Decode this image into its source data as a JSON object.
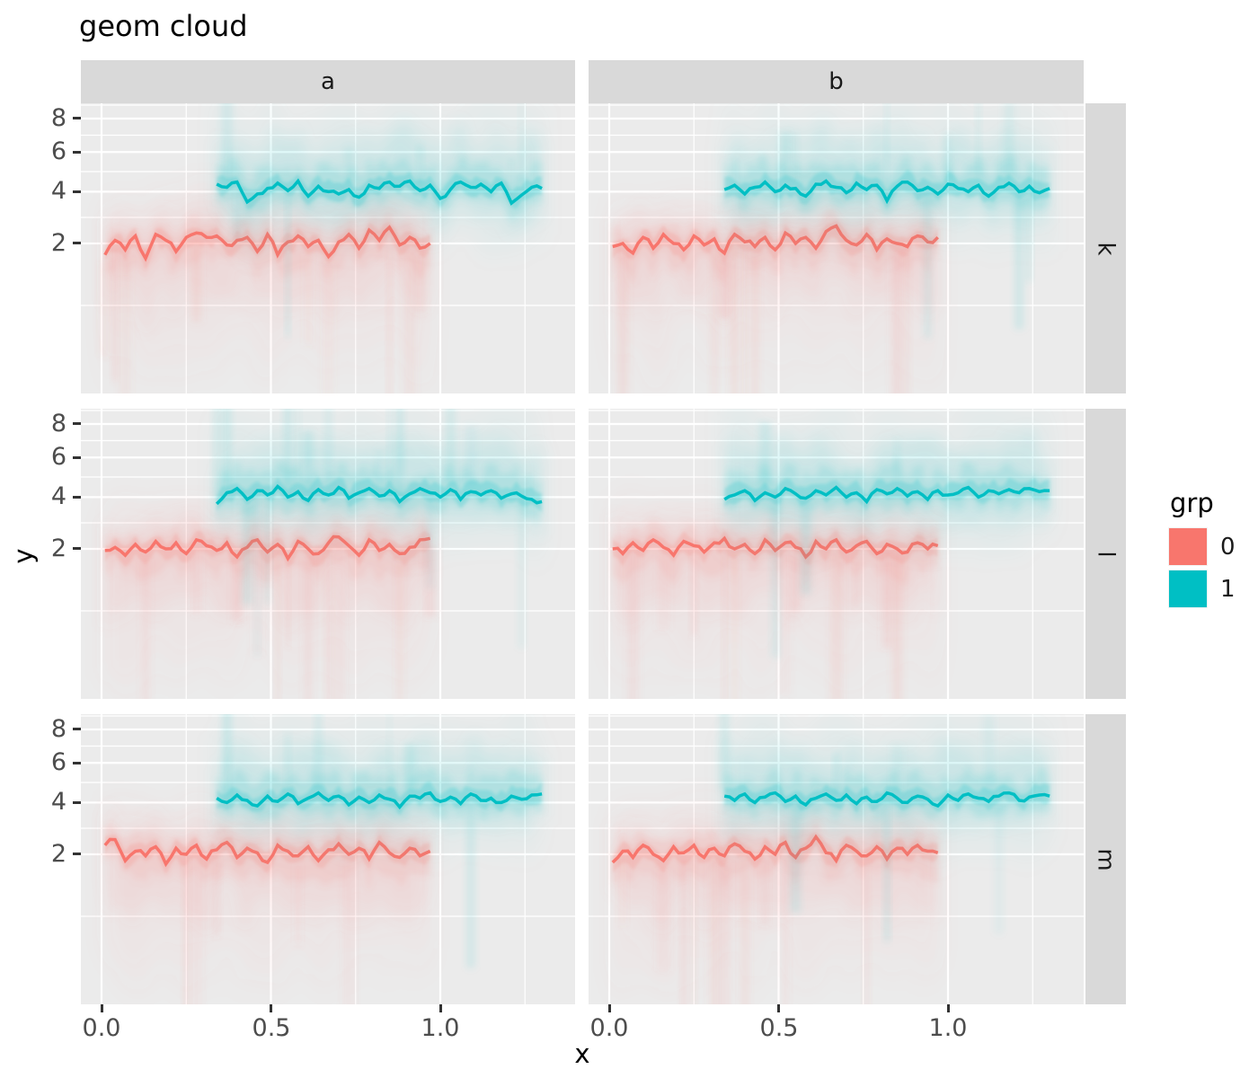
{
  "title": "geom cloud",
  "facets": {
    "cols": [
      "a",
      "b"
    ],
    "rows": [
      "k",
      "l",
      "m"
    ]
  },
  "axes": {
    "x_title": "x",
    "y_title": "y",
    "x_tick_labels": [
      "0.0",
      "0.5",
      "1.0"
    ],
    "x_tick_values": [
      0.0,
      0.5,
      1.0
    ],
    "y_tick_labels": [
      "8",
      "6",
      "4",
      "2"
    ],
    "y_tick_values": [
      8,
      6,
      4,
      2
    ],
    "y_scale": "sqrt",
    "x_range": [
      -0.06,
      1.4
    ],
    "y_range": [
      0,
      9
    ]
  },
  "legend": {
    "title": "grp",
    "items": [
      {
        "label": "0",
        "color": "#F8766D"
      },
      {
        "label": "1",
        "color": "#00BFC4"
      }
    ]
  },
  "colors": {
    "panel_bg": "#EBEBEB",
    "strip_bg": "#D9D9D9",
    "grid": "#FFFFFF",
    "axis_text": "#4D4D4D",
    "tick_mark": "#333333",
    "grp0": "#F8766D",
    "grp1": "#00BFC4"
  },
  "chart_data": {
    "type": "line",
    "description": "faceted jagged lines with fuzzy uncertainty clouds; grp 0 around y=2, grp 1 around y=4",
    "panels": [
      {
        "facet_col": "a",
        "facet_row": "k",
        "series": [
          {
            "grp": "0",
            "x0": 0.01,
            "dx": 0.03,
            "y": [
              1.65,
              2.1,
              1.8,
              2.25,
              1.55,
              2.3,
              2.1,
              1.75,
              2.2,
              2.35,
              2.2,
              2.25,
              1.95,
              2.1,
              2.2,
              1.75,
              2.3,
              1.65,
              2.05,
              2.25,
              1.9,
              2.1,
              1.6,
              2.05,
              2.3,
              1.85,
              2.45,
              2.1,
              2.55,
              1.95,
              2.2,
              1.85,
              2.0
            ]
          },
          {
            "grp": "1",
            "x0": 0.34,
            "dx": 0.03,
            "y": [
              4.35,
              4.2,
              4.45,
              3.55,
              3.9,
              4.15,
              4.4,
              4.05,
              4.5,
              3.8,
              4.25,
              4.0,
              3.9,
              4.1,
              3.75,
              4.3,
              4.15,
              4.45,
              4.25,
              4.5,
              4.05,
              4.3,
              3.7,
              4.1,
              4.45,
              4.2,
              4.35,
              4.0,
              4.4,
              3.5,
              3.85,
              4.2,
              4.15
            ]
          }
        ]
      },
      {
        "facet_col": "b",
        "facet_row": "k",
        "series": [
          {
            "grp": "0",
            "x0": 0.01,
            "dx": 0.03,
            "y": [
              1.9,
              2.0,
              1.7,
              2.2,
              1.85,
              2.3,
              2.0,
              1.8,
              2.25,
              1.95,
              2.15,
              1.7,
              2.3,
              2.05,
              1.9,
              2.2,
              1.8,
              2.35,
              2.0,
              2.2,
              1.85,
              2.4,
              2.6,
              2.1,
              1.95,
              2.3,
              1.8,
              2.15,
              2.0,
              1.9,
              2.25,
              2.05,
              2.2
            ]
          },
          {
            "grp": "1",
            "x0": 0.34,
            "dx": 0.03,
            "y": [
              4.1,
              4.3,
              3.9,
              4.2,
              4.45,
              4.0,
              4.3,
              4.15,
              3.8,
              4.35,
              4.5,
              4.2,
              3.95,
              4.4,
              4.1,
              4.3,
              3.6,
              4.25,
              4.45,
              4.05,
              4.2,
              3.9,
              4.35,
              4.15,
              4.0,
              4.3,
              3.8,
              4.2,
              4.4,
              4.0,
              4.25,
              3.95,
              4.15
            ]
          }
        ]
      },
      {
        "facet_col": "a",
        "facet_row": "l",
        "series": [
          {
            "grp": "0",
            "x0": 0.01,
            "dx": 0.03,
            "y": [
              1.95,
              2.05,
              1.8,
              2.15,
              1.9,
              2.25,
              2.0,
              2.2,
              1.85,
              2.3,
              2.1,
              1.95,
              2.2,
              1.75,
              2.05,
              2.3,
              1.9,
              2.15,
              1.7,
              2.25,
              2.0,
              1.85,
              2.2,
              2.4,
              2.1,
              1.8,
              2.3,
              1.95,
              2.15,
              1.85,
              2.05,
              2.3,
              2.35
            ]
          },
          {
            "grp": "1",
            "x0": 0.34,
            "dx": 0.03,
            "y": [
              3.7,
              4.2,
              4.4,
              3.9,
              4.3,
              4.1,
              4.5,
              4.0,
              4.25,
              3.85,
              4.35,
              4.1,
              4.45,
              3.95,
              4.2,
              4.4,
              4.05,
              4.3,
              3.8,
              4.15,
              4.4,
              4.2,
              4.0,
              4.35,
              3.9,
              4.25,
              4.1,
              4.3,
              3.95,
              4.15,
              4.05,
              3.9,
              3.8
            ]
          }
        ]
      },
      {
        "facet_col": "b",
        "facet_row": "l",
        "series": [
          {
            "grp": "0",
            "x0": 0.01,
            "dx": 0.03,
            "y": [
              2.0,
              1.85,
              2.2,
              1.95,
              2.3,
              2.05,
              1.8,
              2.25,
              2.1,
              1.9,
              2.2,
              2.35,
              2.0,
              2.15,
              1.85,
              2.3,
              1.95,
              2.2,
              2.05,
              1.75,
              2.25,
              2.0,
              2.3,
              1.9,
              2.1,
              2.25,
              1.85,
              2.15,
              2.0,
              1.9,
              2.2,
              2.0,
              2.1
            ]
          },
          {
            "grp": "1",
            "x0": 0.34,
            "dx": 0.03,
            "y": [
              3.9,
              4.1,
              4.3,
              3.85,
              4.2,
              4.0,
              4.4,
              4.15,
              3.95,
              4.3,
              4.1,
              4.45,
              4.0,
              4.2,
              3.8,
              4.35,
              4.15,
              4.4,
              4.05,
              4.25,
              3.9,
              4.3,
              4.1,
              4.2,
              4.45,
              4.0,
              4.3,
              4.15,
              4.35,
              4.2,
              4.4,
              4.25,
              4.3
            ]
          }
        ]
      },
      {
        "facet_col": "a",
        "facet_row": "m",
        "series": [
          {
            "grp": "0",
            "x0": 0.01,
            "dx": 0.03,
            "y": [
              2.3,
              2.5,
              1.8,
              2.1,
              1.95,
              2.25,
              1.7,
              2.2,
              2.0,
              2.3,
              1.85,
              2.15,
              2.4,
              1.9,
              2.2,
              2.05,
              1.75,
              2.3,
              2.1,
              1.95,
              2.25,
              1.8,
              2.15,
              2.35,
              2.0,
              2.2,
              1.85,
              2.4,
              2.05,
              1.9,
              2.2,
              1.95,
              2.1
            ]
          },
          {
            "grp": "1",
            "x0": 0.34,
            "dx": 0.03,
            "y": [
              4.2,
              4.0,
              4.35,
              4.1,
              3.85,
              4.3,
              4.05,
              4.4,
              3.95,
              4.2,
              4.45,
              4.1,
              4.3,
              3.9,
              4.25,
              4.0,
              4.35,
              4.15,
              3.8,
              4.3,
              4.2,
              4.45,
              4.05,
              4.25,
              3.95,
              4.4,
              4.1,
              4.2,
              4.0,
              4.3,
              4.15,
              4.35,
              4.4
            ]
          }
        ]
      },
      {
        "facet_col": "b",
        "facet_row": "m",
        "series": [
          {
            "grp": "0",
            "x0": 0.01,
            "dx": 0.03,
            "y": [
              1.75,
              2.1,
              1.9,
              2.3,
              2.0,
              1.8,
              2.25,
              2.05,
              2.3,
              1.9,
              2.2,
              1.95,
              2.35,
              2.1,
              1.85,
              2.25,
              2.0,
              2.4,
              1.9,
              2.2,
              2.6,
              2.05,
              1.8,
              2.3,
              2.1,
              1.95,
              2.25,
              1.85,
              2.2,
              2.0,
              2.3,
              2.1,
              2.05
            ]
          },
          {
            "grp": "1",
            "x0": 0.34,
            "dx": 0.03,
            "y": [
              4.3,
              4.1,
              4.4,
              4.0,
              4.25,
              4.45,
              4.05,
              4.3,
              3.9,
              4.2,
              4.4,
              4.1,
              4.35,
              3.95,
              4.25,
              4.05,
              4.45,
              4.2,
              4.0,
              4.3,
              4.15,
              3.85,
              4.35,
              4.1,
              4.4,
              4.2,
              4.05,
              4.3,
              4.45,
              4.1,
              4.25,
              4.35,
              4.3
            ]
          }
        ]
      }
    ]
  }
}
